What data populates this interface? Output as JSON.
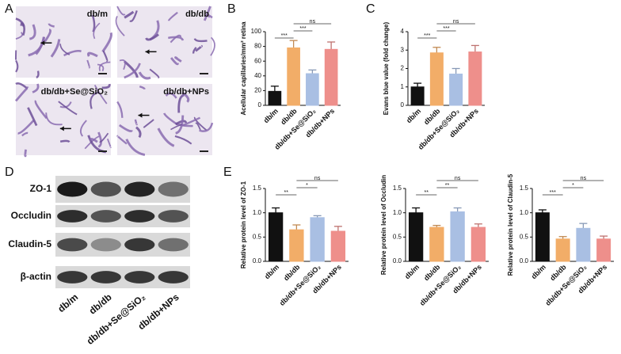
{
  "figure": {
    "panel_labels": [
      "A",
      "B",
      "C",
      "D",
      "E"
    ],
    "image_labels": [
      "db/m",
      "db/db",
      "db/db+Se@SiO₂",
      "db/db+NPs"
    ],
    "blot_rows": [
      "ZO-1",
      "Occludin",
      "Claudin-5",
      "β-actin"
    ],
    "blot_columns": [
      "db/m",
      "db/db",
      "db/db+Se@SiO₂",
      "db/db+NPs"
    ]
  },
  "chart_data": [
    {
      "type": "bar",
      "ylabel": "Acellular capillaries/mm² retina",
      "categories": [
        "db/m",
        "db/db",
        "db/db+Se@SiO₂",
        "db/db+NPs"
      ],
      "values": [
        19,
        78,
        43,
        76
      ],
      "errors": [
        7,
        10,
        5,
        10
      ],
      "colors": [
        "#111111",
        "#f2ad68",
        "#a9bfe3",
        "#ee8f8b"
      ],
      "ylim": [
        0,
        100
      ],
      "yticks": [
        0,
        20,
        40,
        60,
        80,
        100
      ],
      "annotations": [
        {
          "text": "***",
          "pair": [
            0,
            1
          ]
        },
        {
          "text": "***",
          "pair": [
            1,
            2
          ]
        },
        {
          "text": "ns",
          "pair": [
            1,
            3
          ]
        }
      ]
    },
    {
      "type": "bar",
      "ylabel": "Evans blue value (fold change)",
      "categories": [
        "db/m",
        "db/db",
        "db/db+Se@SiO₂",
        "db/db+NPs"
      ],
      "values": [
        1.0,
        2.85,
        1.7,
        2.9
      ],
      "errors": [
        0.2,
        0.3,
        0.3,
        0.35
      ],
      "colors": [
        "#111111",
        "#f2ad68",
        "#a9bfe3",
        "#ee8f8b"
      ],
      "ylim": [
        0,
        4
      ],
      "yticks": [
        0,
        1,
        2,
        3,
        4
      ],
      "annotations": [
        {
          "text": "***",
          "pair": [
            0,
            1
          ]
        },
        {
          "text": "***",
          "pair": [
            1,
            2
          ]
        },
        {
          "text": "ns",
          "pair": [
            1,
            3
          ]
        }
      ]
    },
    {
      "type": "bar",
      "ylabel": "Relative protein level of ZO-1",
      "categories": [
        "db/m",
        "db/db",
        "db/db+Se@SiO₂",
        "db/db+NPs"
      ],
      "values": [
        1.0,
        0.65,
        0.9,
        0.62
      ],
      "errors": [
        0.1,
        0.1,
        0.04,
        0.1
      ],
      "colors": [
        "#111111",
        "#f2ad68",
        "#a9bfe3",
        "#ee8f8b"
      ],
      "ylim": [
        0,
        1.5
      ],
      "yticks": [
        {
          "value": 0,
          "label": "0.0"
        },
        0.5,
        {
          "value": 1,
          "label": "1.0"
        },
        1.5
      ],
      "annotations": [
        {
          "text": "**",
          "pair": [
            0,
            1
          ]
        },
        {
          "text": "*",
          "pair": [
            1,
            2
          ]
        },
        {
          "text": "ns",
          "pair": [
            1,
            3
          ]
        }
      ]
    },
    {
      "type": "bar",
      "ylabel": "Relative protein level of Occludin",
      "categories": [
        "db/m",
        "db/db",
        "db/db+Se@SiO₂",
        "db/db+NPs"
      ],
      "values": [
        1.0,
        0.7,
        1.02,
        0.7
      ],
      "errors": [
        0.1,
        0.04,
        0.08,
        0.07
      ],
      "colors": [
        "#111111",
        "#f2ad68",
        "#a9bfe3",
        "#ee8f8b"
      ],
      "ylim": [
        0,
        1.5
      ],
      "yticks": [
        {
          "value": 0,
          "label": "0.0"
        },
        0.5,
        {
          "value": 1,
          "label": "1.0"
        },
        1.5
      ],
      "annotations": [
        {
          "text": "**",
          "pair": [
            0,
            1
          ]
        },
        {
          "text": "**",
          "pair": [
            1,
            2
          ]
        },
        {
          "text": "ns",
          "pair": [
            1,
            3
          ]
        }
      ]
    },
    {
      "type": "bar",
      "ylabel": "Relative protein level of Claudin-5",
      "categories": [
        "db/m",
        "db/db",
        "db/db+Se@SiO₂",
        "db/db+NPs"
      ],
      "values": [
        1.0,
        0.46,
        0.68,
        0.46
      ],
      "errors": [
        0.06,
        0.05,
        0.1,
        0.06
      ],
      "colors": [
        "#111111",
        "#f2ad68",
        "#a9bfe3",
        "#ee8f8b"
      ],
      "ylim": [
        0,
        1.5
      ],
      "yticks": [
        {
          "value": 0,
          "label": "0.0"
        },
        0.5,
        {
          "value": 1,
          "label": "1.0"
        },
        1.5
      ],
      "annotations": [
        {
          "text": "***",
          "pair": [
            0,
            1
          ]
        },
        {
          "text": "*",
          "pair": [
            1,
            2
          ]
        },
        {
          "text": "ns",
          "pair": [
            1,
            3
          ]
        }
      ]
    }
  ]
}
